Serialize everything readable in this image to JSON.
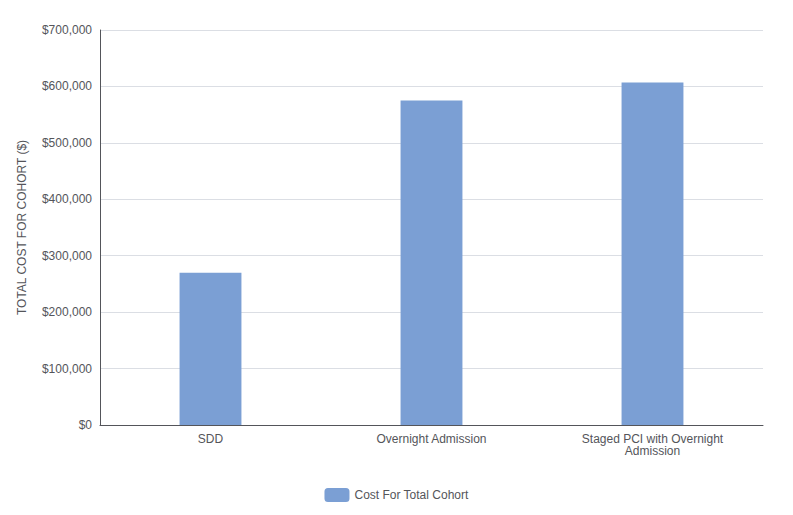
{
  "chart_data": {
    "type": "bar",
    "categories": [
      "SDD",
      "Overnight Admission",
      "Staged PCI with Overnight\nAdmission"
    ],
    "series": [
      {
        "name": "Cost For Total Cohort",
        "color": "#7b9fd4",
        "values": [
          270000,
          575000,
          607000
        ]
      }
    ],
    "ylabel": "TOTAL COST FOR COHORT ($)",
    "ylim": [
      0,
      700000
    ],
    "yticks": [
      {
        "value": 0,
        "label": "$0"
      },
      {
        "value": 100000,
        "label": "$100,000"
      },
      {
        "value": 200000,
        "label": "$200,000"
      },
      {
        "value": 300000,
        "label": "$300,000"
      },
      {
        "value": 400000,
        "label": "$400,000"
      },
      {
        "value": 500000,
        "label": "$500,000"
      },
      {
        "value": 600000,
        "label": "$600,000"
      },
      {
        "value": 700000,
        "label": "$700,000"
      }
    ],
    "grid": true,
    "legend": "bottom"
  }
}
